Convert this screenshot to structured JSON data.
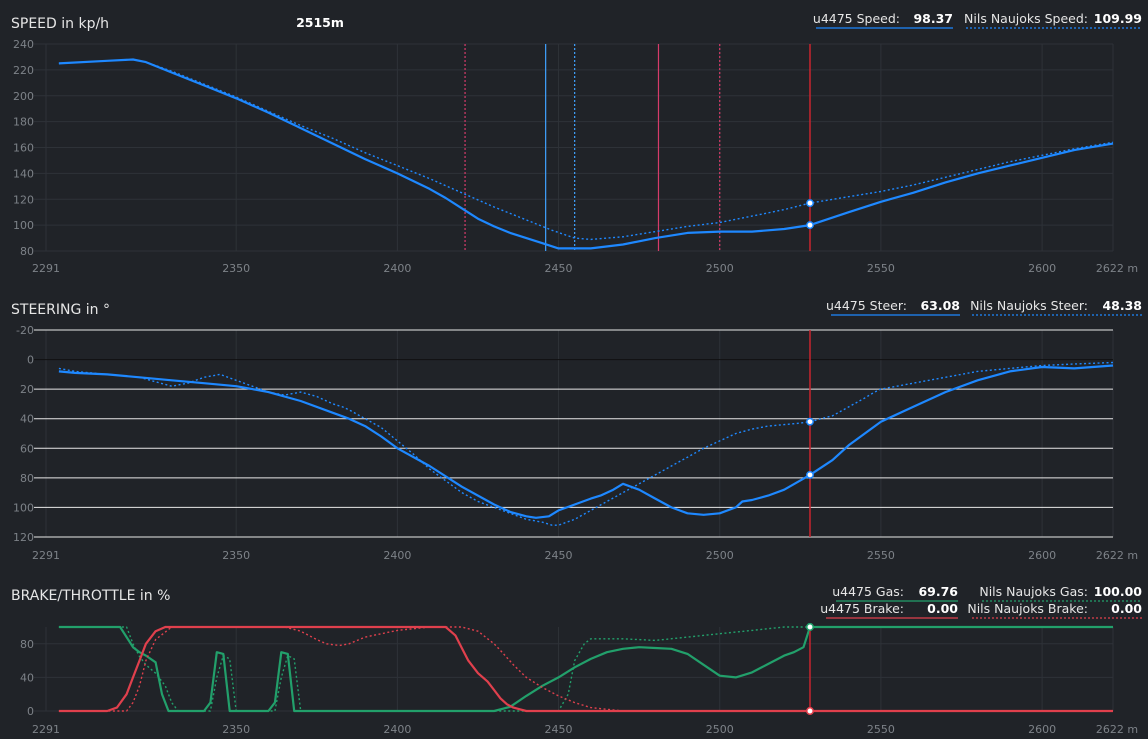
{
  "colors": {
    "background": "#202328",
    "grid": "#2e3238",
    "tick_text": "#7d8288",
    "speed_line": "#1e88ff",
    "steer_line": "#1e88ff",
    "gas_line": "#22a06b",
    "brake_line": "#e0404d",
    "cursor": "#c8242f",
    "white_grid": "#e8e8e8",
    "label_text": "#e6e6e6",
    "value_text": "#ffffff",
    "marker_pink": "#d63b6a",
    "marker_blue": "#3fa2ff"
  },
  "distance_label": "2515m",
  "charts": [
    {
      "id": "speed",
      "title": "SPEED in kp/h",
      "legend": [
        {
          "name": "u4475 Speed:",
          "value": "98.37",
          "line": "solid",
          "color": "#1e88ff"
        },
        {
          "name": "Nils Naujoks Speed:",
          "value": "109.99",
          "line": "dotted",
          "color": "#1e88ff"
        }
      ]
    },
    {
      "id": "steer",
      "title": "STEERING in °",
      "legend": [
        {
          "name": "u4475 Steer:",
          "value": "63.08",
          "line": "solid",
          "color": "#1e88ff"
        },
        {
          "name": "Nils Naujoks Steer:",
          "value": "48.38",
          "line": "dotted",
          "color": "#1e88ff"
        }
      ]
    },
    {
      "id": "pedal",
      "title": "BRAKE/THROTTLE in %",
      "legend": [
        {
          "name": "u4475 Gas:",
          "value": "69.76",
          "line": "solid",
          "color": "#22a06b"
        },
        {
          "name": "Nils Naujoks Gas:",
          "value": "100.00",
          "line": "dotted",
          "color": "#22a06b"
        },
        {
          "name": "u4475 Brake:",
          "value": "0.00",
          "line": "solid",
          "color": "#e0404d"
        },
        {
          "name": "Nils Naujoks Brake:",
          "value": "0.00",
          "line": "dotted",
          "color": "#e0404d"
        }
      ]
    }
  ],
  "chart_data": [
    {
      "type": "line",
      "title": "SPEED in kp/h",
      "xlim": [
        2291,
        2622
      ],
      "ylim": [
        80,
        240
      ],
      "x_ticks": [
        "2291",
        "2350",
        "2400",
        "2450",
        "2500",
        "2550",
        "2600",
        "2622 m"
      ],
      "x_tick_values": [
        2291,
        2350,
        2400,
        2450,
        2500,
        2550,
        2600,
        2622
      ],
      "y_ticks": [
        80,
        100,
        120,
        140,
        160,
        180,
        200,
        220,
        240
      ],
      "cursor_x": 2528,
      "markers": [
        {
          "x": 2421,
          "style": "dotted",
          "color": "#d63b6a"
        },
        {
          "x": 2446,
          "style": "solid",
          "color": "#3fa2ff"
        },
        {
          "x": 2455,
          "style": "dotted",
          "color": "#3fa2ff"
        },
        {
          "x": 2481,
          "style": "solid",
          "color": "#d63b6a"
        },
        {
          "x": 2500,
          "style": "dotted",
          "color": "#d63b6a"
        }
      ],
      "series": [
        {
          "name": "u4475 Speed",
          "style": "solid",
          "color": "#1e88ff",
          "x": [
            2295,
            2310,
            2318,
            2322,
            2330,
            2340,
            2350,
            2360,
            2370,
            2380,
            2390,
            2400,
            2410,
            2415,
            2420,
            2425,
            2430,
            2435,
            2440,
            2445,
            2450,
            2460,
            2470,
            2480,
            2490,
            2500,
            2510,
            2520,
            2528,
            2540,
            2550,
            2560,
            2570,
            2580,
            2590,
            2600,
            2610,
            2622
          ],
          "y": [
            225,
            227,
            228,
            226,
            218,
            208,
            198,
            187,
            175,
            163,
            151,
            140,
            128,
            121,
            113,
            105,
            99,
            94,
            90,
            86,
            82,
            82,
            85,
            90,
            94,
            95,
            95,
            97,
            100,
            110,
            118,
            125,
            133,
            140,
            146,
            152,
            158,
            163
          ]
        },
        {
          "name": "Nils Naujoks Speed",
          "style": "dotted",
          "color": "#1e88ff",
          "x": [
            2295,
            2310,
            2318,
            2322,
            2330,
            2340,
            2350,
            2360,
            2370,
            2380,
            2390,
            2400,
            2410,
            2420,
            2430,
            2440,
            2448,
            2455,
            2460,
            2470,
            2480,
            2490,
            2500,
            2510,
            2520,
            2528,
            2540,
            2550,
            2560,
            2570,
            2580,
            2590,
            2600,
            2610,
            2622
          ],
          "y": [
            225,
            227,
            228,
            226,
            219,
            209,
            199,
            188,
            177,
            167,
            156,
            146,
            136,
            125,
            114,
            104,
            96,
            90,
            89,
            91,
            95,
            99,
            102,
            107,
            112,
            117,
            122,
            126,
            131,
            137,
            143,
            149,
            154,
            159,
            164
          ]
        }
      ]
    },
    {
      "type": "line",
      "title": "STEERING in °",
      "xlim": [
        2291,
        2622
      ],
      "ylim": [
        -20,
        120
      ],
      "y_inverted": true,
      "x_ticks": [
        "2291",
        "2350",
        "2400",
        "2450",
        "2500",
        "2550",
        "2600",
        "2622 m"
      ],
      "x_tick_values": [
        2291,
        2350,
        2400,
        2450,
        2500,
        2550,
        2600,
        2622
      ],
      "y_ticks": [
        -20,
        0,
        20,
        40,
        60,
        80,
        100,
        120
      ],
      "cursor_x": 2528,
      "series": [
        {
          "name": "u4475 Steer",
          "style": "solid",
          "color": "#1e88ff",
          "x": [
            2295,
            2300,
            2310,
            2320,
            2330,
            2340,
            2350,
            2355,
            2360,
            2370,
            2380,
            2385,
            2390,
            2395,
            2400,
            2410,
            2420,
            2430,
            2435,
            2440,
            2443,
            2447,
            2450,
            2455,
            2460,
            2463,
            2467,
            2470,
            2475,
            2480,
            2485,
            2490,
            2495,
            2500,
            2505,
            2507,
            2510,
            2515,
            2520,
            2528,
            2535,
            2540,
            2545,
            2550,
            2560,
            2570,
            2580,
            2590,
            2600,
            2610,
            2622
          ],
          "y": [
            8,
            9,
            10,
            12,
            14,
            16,
            18,
            20,
            22,
            28,
            36,
            40,
            45,
            52,
            60,
            72,
            86,
            98,
            103,
            106,
            107,
            106,
            102,
            98,
            94,
            92,
            88,
            84,
            88,
            94,
            100,
            104,
            105,
            104,
            100,
            96,
            95,
            92,
            88,
            78,
            68,
            58,
            50,
            42,
            32,
            22,
            14,
            8,
            5,
            6,
            4
          ]
        },
        {
          "name": "Nils Naujoks Steer",
          "style": "dotted",
          "color": "#1e88ff",
          "x": [
            2295,
            2300,
            2310,
            2320,
            2325,
            2330,
            2335,
            2340,
            2345,
            2350,
            2355,
            2360,
            2365,
            2370,
            2375,
            2378,
            2380,
            2383,
            2385,
            2390,
            2395,
            2400,
            2405,
            2410,
            2415,
            2420,
            2425,
            2430,
            2435,
            2440,
            2445,
            2448,
            2450,
            2455,
            2460,
            2465,
            2470,
            2475,
            2480,
            2485,
            2490,
            2495,
            2500,
            2505,
            2510,
            2515,
            2520,
            2525,
            2528,
            2535,
            2540,
            2545,
            2548,
            2550,
            2555,
            2560,
            2570,
            2580,
            2590,
            2600,
            2610,
            2622
          ],
          "y": [
            6,
            8,
            10,
            12,
            15,
            18,
            16,
            12,
            10,
            14,
            18,
            22,
            24,
            22,
            25,
            28,
            30,
            32,
            34,
            40,
            46,
            55,
            64,
            74,
            82,
            90,
            96,
            100,
            104,
            108,
            110,
            112,
            112,
            108,
            102,
            96,
            90,
            84,
            78,
            72,
            66,
            60,
            55,
            50,
            47,
            45,
            44,
            43,
            42,
            38,
            32,
            26,
            22,
            20,
            18,
            16,
            12,
            8,
            6,
            4,
            3,
            2
          ]
        }
      ]
    },
    {
      "type": "line",
      "title": "BRAKE/THROTTLE in %",
      "xlim": [
        2291,
        2622
      ],
      "ylim": [
        0,
        100
      ],
      "x_ticks": [
        "2291",
        "2350",
        "2400",
        "2450",
        "2500",
        "2550",
        "2600",
        "2622 m"
      ],
      "x_tick_values": [
        2291,
        2350,
        2400,
        2450,
        2500,
        2550,
        2600,
        2622
      ],
      "y_ticks": [
        0,
        40,
        80
      ],
      "cursor_x": 2528,
      "series": [
        {
          "name": "u4475 Gas",
          "style": "solid",
          "color": "#22a06b",
          "x": [
            2295,
            2314,
            2316,
            2318,
            2320,
            2322,
            2325,
            2327,
            2329,
            2340,
            2342,
            2344,
            2346,
            2348,
            2360,
            2362,
            2364,
            2366,
            2368,
            2430,
            2435,
            2440,
            2445,
            2450,
            2455,
            2460,
            2465,
            2470,
            2475,
            2480,
            2485,
            2490,
            2495,
            2500,
            2505,
            2510,
            2515,
            2520,
            2523,
            2526,
            2528,
            2560,
            2622
          ],
          "y": [
            100,
            100,
            88,
            76,
            70,
            66,
            58,
            20,
            0,
            0,
            10,
            70,
            68,
            0,
            0,
            10,
            70,
            68,
            0,
            0,
            5,
            18,
            30,
            40,
            52,
            62,
            70,
            74,
            76,
            75,
            74,
            68,
            55,
            42,
            40,
            46,
            56,
            66,
            70,
            76,
            100,
            100,
            100
          ]
        },
        {
          "name": "Nils Naujoks Gas",
          "style": "dotted",
          "color": "#22a06b",
          "x": [
            2295,
            2316,
            2318,
            2320,
            2322,
            2325,
            2328,
            2330,
            2332,
            2342,
            2344,
            2346,
            2348,
            2350,
            2362,
            2364,
            2366,
            2368,
            2370,
            2430,
            2440,
            2445,
            2450,
            2453,
            2455,
            2458,
            2460,
            2470,
            2480,
            2490,
            2500,
            2510,
            2520,
            2528,
            2560,
            2622
          ],
          "y": [
            100,
            100,
            80,
            65,
            55,
            45,
            30,
            10,
            0,
            0,
            40,
            66,
            62,
            0,
            0,
            40,
            66,
            62,
            0,
            0,
            0,
            0,
            0,
            20,
            60,
            80,
            86,
            86,
            84,
            88,
            92,
            96,
            100,
            100,
            100,
            100
          ]
        },
        {
          "name": "u4475 Brake",
          "style": "solid",
          "color": "#e0404d",
          "x": [
            2295,
            2310,
            2313,
            2316,
            2318,
            2320,
            2322,
            2325,
            2328,
            2400,
            2412,
            2415,
            2418,
            2420,
            2422,
            2425,
            2428,
            2430,
            2432,
            2434,
            2436,
            2438,
            2440,
            2445,
            2450,
            2480,
            2528,
            2560,
            2622
          ],
          "y": [
            0,
            0,
            4,
            20,
            40,
            60,
            80,
            95,
            100,
            100,
            100,
            100,
            90,
            75,
            60,
            45,
            35,
            25,
            15,
            8,
            4,
            2,
            0,
            0,
            0,
            0,
            0,
            0,
            0
          ]
        },
        {
          "name": "Nils Naujoks Brake",
          "style": "dotted",
          "color": "#e0404d",
          "x": [
            2295,
            2316,
            2318,
            2320,
            2322,
            2325,
            2330,
            2350,
            2365,
            2370,
            2375,
            2378,
            2382,
            2385,
            2390,
            2400,
            2410,
            2420,
            2425,
            2430,
            2432,
            2436,
            2440,
            2445,
            2450,
            2455,
            2460,
            2470,
            2480,
            2500,
            2528,
            2560,
            2622
          ],
          "y": [
            0,
            0,
            10,
            30,
            60,
            85,
            100,
            100,
            100,
            95,
            85,
            80,
            78,
            80,
            88,
            96,
            100,
            100,
            95,
            80,
            72,
            55,
            40,
            28,
            18,
            10,
            4,
            0,
            0,
            0,
            0,
            0,
            0
          ]
        }
      ]
    }
  ]
}
